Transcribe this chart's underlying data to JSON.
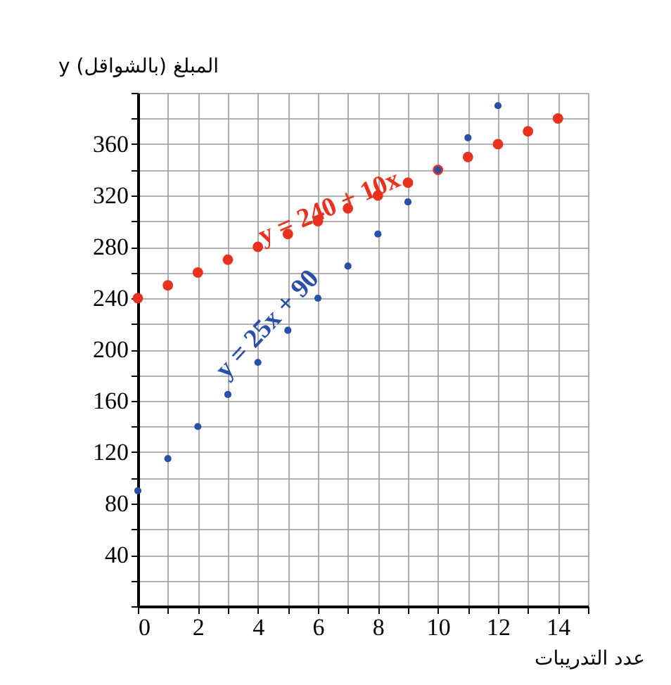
{
  "chart_data": {
    "type": "scatter",
    "ylabel": "y المبلغ (بالشواقل)",
    "xlabel": "عدد التدريبات",
    "series": [
      {
        "color": "#e8321e",
        "x": [
          0,
          1,
          2,
          3,
          4,
          5,
          6,
          7,
          8,
          9,
          10,
          11,
          12,
          13,
          14
        ],
        "values": [
          240,
          250,
          260,
          270,
          280,
          290,
          300,
          310,
          320,
          330,
          340,
          350,
          360,
          370,
          380
        ]
      },
      {
        "color": "#2a4fa8",
        "x": [
          0,
          1,
          2,
          3,
          4,
          5,
          6,
          7,
          8,
          9,
          10,
          11,
          12
        ],
        "values": [
          90,
          115,
          140,
          165,
          190,
          215,
          240,
          265,
          290,
          315,
          340,
          365,
          390
        ]
      }
    ],
    "annotations": [
      "y = 240 + 10x",
      "y = 25x + 90"
    ],
    "xlim": [
      0,
      15
    ],
    "ylim": [
      0,
      400
    ],
    "xticks": [
      0,
      {
        "value": 1,
        "label": null
      },
      2,
      {
        "value": 3,
        "label": null
      },
      4,
      {
        "value": 5,
        "label": null
      },
      6,
      {
        "value": 7,
        "label": null
      },
      8,
      {
        "value": 9,
        "label": null
      },
      10,
      {
        "value": 11,
        "label": null
      },
      12,
      {
        "value": 13,
        "label": null
      },
      14,
      {
        "value": 15,
        "label": null
      }
    ],
    "yticks": [
      {
        "value": 0,
        "label": null
      },
      {
        "value": 20,
        "label": null
      },
      40,
      {
        "value": 60,
        "label": null
      },
      80,
      {
        "value": 100,
        "label": null
      },
      120,
      {
        "value": 140,
        "label": null
      },
      160,
      {
        "value": 180,
        "label": null
      },
      200,
      {
        "value": 220,
        "label": null
      },
      240,
      {
        "value": 260,
        "label": null
      },
      280,
      {
        "value": 300,
        "label": null
      },
      320,
      {
        "value": 340,
        "label": null
      },
      360,
      {
        "value": 380,
        "label": null
      },
      {
        "value": 400,
        "label": null
      }
    ],
    "grid": true,
    "marker": "circle"
  }
}
